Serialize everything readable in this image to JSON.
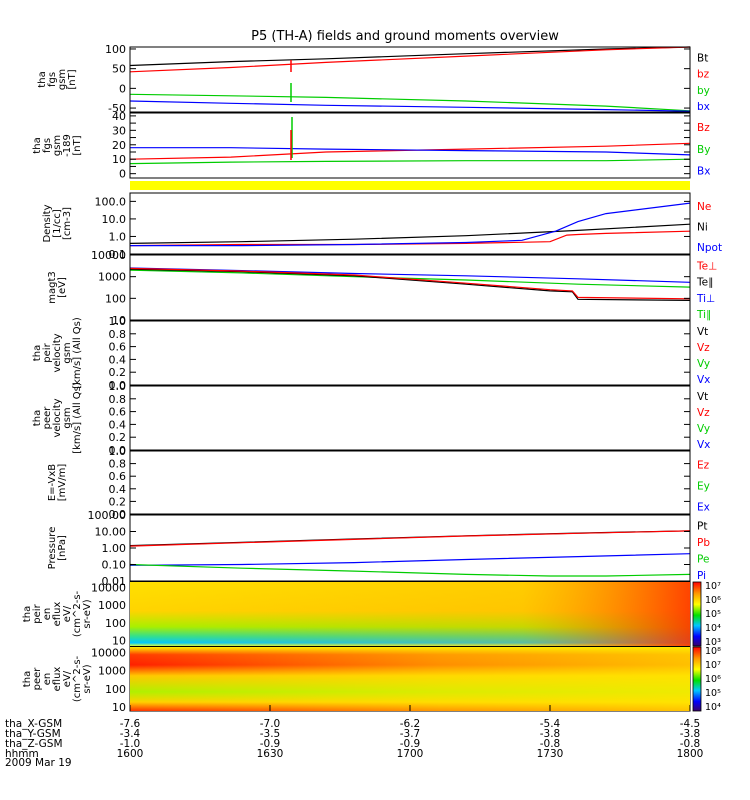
{
  "title": "P5 (TH-A) fields and ground moments overview",
  "chart_data": [
    {
      "type": "line",
      "ylabel": [
        "tha",
        "fgs",
        "gsm",
        "[nT]"
      ],
      "ylim": [
        -60,
        105
      ],
      "yticks": [
        -50,
        0,
        50,
        100
      ],
      "ticklabels": [
        "-50",
        "0",
        "50",
        "100"
      ],
      "legend": [
        {
          "name": "Bt",
          "color": "#000000"
        },
        {
          "name": "bz",
          "color": "#ff0000"
        },
        {
          "name": "by",
          "color": "#00cc00"
        },
        {
          "name": "bx",
          "color": "#0000ff"
        }
      ],
      "series": [
        {
          "name": "Bt",
          "color": "#000000",
          "x": [
            0,
            18,
            35,
            60,
            85,
            100
          ],
          "y": [
            58,
            68,
            75,
            88,
            100,
            108
          ]
        },
        {
          "name": "bz",
          "color": "#ff0000",
          "x": [
            0,
            18,
            35,
            60,
            85,
            100
          ],
          "y": [
            42,
            53,
            66,
            82,
            98,
            108
          ]
        },
        {
          "name": "by",
          "color": "#00cc00",
          "x": [
            0,
            18,
            35,
            60,
            85,
            100
          ],
          "y": [
            -15,
            -19,
            -23,
            -32,
            -45,
            -57
          ]
        },
        {
          "name": "bx",
          "color": "#0000ff",
          "x": [
            0,
            18,
            35,
            60,
            85,
            100
          ],
          "y": [
            -32,
            -38,
            -43,
            -48,
            -54,
            -58
          ]
        }
      ]
    },
    {
      "type": "line",
      "ylabel": [
        "tha",
        "fgs",
        "gsm",
        "-189",
        "[nT]"
      ],
      "ylim": [
        -3,
        42
      ],
      "yticks": [
        0,
        5,
        10,
        15,
        20,
        25,
        30,
        35,
        40
      ],
      "ticklabels": [
        "0",
        "",
        "10",
        "",
        "20",
        "",
        "30",
        "",
        "40"
      ],
      "legend": [
        {
          "name": "Bz",
          "color": "#ff0000"
        },
        {
          "name": "By",
          "color": "#00cc00"
        },
        {
          "name": "Bx",
          "color": "#0000ff"
        }
      ],
      "series": [
        {
          "name": "Bz",
          "color": "#ff0000",
          "x": [
            0,
            18,
            35,
            60,
            85,
            100
          ],
          "y": [
            10,
            11.5,
            15,
            17,
            19,
            21
          ]
        },
        {
          "name": "By",
          "color": "#00cc00",
          "x": [
            0,
            18,
            35,
            60,
            85,
            100
          ],
          "y": [
            7,
            8,
            8.5,
            9,
            9,
            10
          ]
        },
        {
          "name": "Bx",
          "color": "#0000ff",
          "x": [
            0,
            18,
            35,
            60,
            85,
            100
          ],
          "y": [
            18,
            18,
            17,
            16,
            15,
            13
          ]
        }
      ]
    },
    {
      "type": "line",
      "log": true,
      "ylabel": [
        "Density",
        "[1/cc]",
        "[cm-3]"
      ],
      "ylim": [
        0.1,
        300
      ],
      "yticks": [
        0.1,
        1,
        10,
        100
      ],
      "ticklabels": [
        "0.1",
        "1.0",
        "10.0",
        "100.0"
      ],
      "legend": [
        {
          "name": "Ne",
          "color": "#ff0000"
        },
        {
          "name": "Ni",
          "color": "#000000"
        },
        {
          "name": "Npot",
          "color": "#0000ff"
        }
      ],
      "series": [
        {
          "name": "Ni",
          "color": "#000000",
          "x": [
            0,
            20,
            40,
            60,
            80,
            100
          ],
          "y": [
            0.4,
            0.5,
            0.7,
            1.1,
            2.2,
            5
          ]
        },
        {
          "name": "Ne",
          "color": "#ff0000",
          "x": [
            0,
            20,
            40,
            60,
            75,
            78,
            80,
            85,
            100
          ],
          "y": [
            0.3,
            0.35,
            0.35,
            0.4,
            0.5,
            1.2,
            1.3,
            1.5,
            2
          ]
        },
        {
          "name": "Npot",
          "color": "#0000ff",
          "x": [
            0,
            20,
            40,
            60,
            70,
            76,
            80,
            85,
            100
          ],
          "y": [
            0.3,
            0.3,
            0.35,
            0.45,
            0.6,
            2,
            7,
            20,
            80
          ]
        }
      ]
    },
    {
      "type": "line",
      "log": true,
      "ylabel": [
        "magt3",
        "[eV]"
      ],
      "ylim": [
        10,
        10000
      ],
      "yticks": [
        10,
        100,
        1000,
        10000
      ],
      "ticklabels": [
        "10",
        "100",
        "1000",
        "10000"
      ],
      "legend": [
        {
          "name": "Te⊥",
          "color": "#ff0000"
        },
        {
          "name": "Te∥",
          "color": "#000000"
        },
        {
          "name": "Ti⊥",
          "color": "#0000ff"
        },
        {
          "name": "Ti∥",
          "color": "#00cc00"
        }
      ],
      "series": [
        {
          "name": "Ti⊥",
          "color": "#0000ff",
          "x": [
            0,
            20,
            40,
            60,
            80,
            100
          ],
          "y": [
            2500,
            1900,
            1400,
            1100,
            800,
            550
          ]
        },
        {
          "name": "Ti∥",
          "color": "#00cc00",
          "x": [
            0,
            20,
            40,
            60,
            80,
            100
          ],
          "y": [
            2000,
            1500,
            1000,
            700,
            450,
            330
          ]
        },
        {
          "name": "Te∥",
          "color": "#000000",
          "x": [
            0,
            20,
            40,
            60,
            75,
            79,
            80,
            100
          ],
          "y": [
            2200,
            1700,
            1100,
            450,
            220,
            200,
            90,
            80
          ]
        },
        {
          "name": "Te⊥",
          "color": "#ff0000",
          "x": [
            0,
            20,
            40,
            60,
            75,
            79,
            80,
            100
          ],
          "y": [
            2400,
            1800,
            1200,
            500,
            250,
            220,
            110,
            95
          ]
        }
      ]
    },
    {
      "type": "line",
      "ylabel": [
        "tha",
        "peir",
        "velocity",
        "gsm",
        "[km/s] (All Qs)"
      ],
      "ylim": [
        0,
        1
      ],
      "yticks": [
        0,
        0.2,
        0.4,
        0.6,
        0.8,
        1
      ],
      "ticklabels": [
        "0.0",
        "0.2",
        "0.4",
        "0.6",
        "0.8",
        "1.0"
      ],
      "legend": [
        {
          "name": "Vt",
          "color": "#000000"
        },
        {
          "name": "Vz",
          "color": "#ff0000"
        },
        {
          "name": "Vy",
          "color": "#00cc00"
        },
        {
          "name": "Vx",
          "color": "#0000ff"
        }
      ],
      "series": []
    },
    {
      "type": "line",
      "ylabel": [
        "tha",
        "peer",
        "velocity",
        "gsm",
        "[km/s] (All Qs)"
      ],
      "ylim": [
        0,
        1
      ],
      "yticks": [
        0,
        0.2,
        0.4,
        0.6,
        0.8,
        1
      ],
      "ticklabels": [
        "0.0",
        "0.2",
        "0.4",
        "0.6",
        "0.8",
        "1.0"
      ],
      "legend": [
        {
          "name": "Vt",
          "color": "#000000"
        },
        {
          "name": "Vz",
          "color": "#ff0000"
        },
        {
          "name": "Vy",
          "color": "#00cc00"
        },
        {
          "name": "Vx",
          "color": "#0000ff"
        }
      ],
      "series": []
    },
    {
      "type": "line",
      "ylabel": [
        "E=-VxB",
        "[mV/m]"
      ],
      "ylim": [
        0,
        1
      ],
      "yticks": [
        0,
        0.2,
        0.4,
        0.6,
        0.8,
        1
      ],
      "ticklabels": [
        "0.0",
        "0.2",
        "0.4",
        "0.6",
        "0.8",
        "1.0"
      ],
      "legend": [
        {
          "name": "Ez",
          "color": "#ff0000"
        },
        {
          "name": "Ey",
          "color": "#00cc00"
        },
        {
          "name": "Ex",
          "color": "#0000ff"
        }
      ],
      "series": []
    },
    {
      "type": "line",
      "log": true,
      "ylabel": [
        "Pressure",
        "[nPa]"
      ],
      "ylim": [
        0.01,
        100
      ],
      "yticks": [
        0.01,
        0.1,
        1,
        10,
        100
      ],
      "ticklabels": [
        "0.01",
        "0.10",
        "1.00",
        "10.00",
        "100.00"
      ],
      "legend": [
        {
          "name": "Pt",
          "color": "#000000"
        },
        {
          "name": "Pb",
          "color": "#ff0000"
        },
        {
          "name": "Pe",
          "color": "#00cc00"
        },
        {
          "name": "Pi",
          "color": "#0000ff"
        }
      ],
      "series": [
        {
          "name": "Pt",
          "color": "#000000",
          "x": [
            0,
            20,
            40,
            60,
            80,
            100
          ],
          "y": [
            1.4,
            2.2,
            3.5,
            5.5,
            8,
            11
          ]
        },
        {
          "name": "Pb",
          "color": "#ff0000",
          "x": [
            0,
            20,
            40,
            60,
            80,
            100
          ],
          "y": [
            1.3,
            2.1,
            3.3,
            5.3,
            7.8,
            10.8
          ]
        },
        {
          "name": "Pi",
          "color": "#0000ff",
          "x": [
            0,
            20,
            40,
            60,
            80,
            100
          ],
          "y": [
            0.09,
            0.1,
            0.13,
            0.2,
            0.3,
            0.45
          ]
        },
        {
          "name": "Pe",
          "color": "#00cc00",
          "x": [
            0,
            20,
            40,
            60,
            75,
            85,
            100
          ],
          "y": [
            0.1,
            0.06,
            0.04,
            0.025,
            0.02,
            0.02,
            0.025
          ]
        }
      ]
    },
    {
      "type": "heatmap",
      "log": true,
      "ylabel": [
        "tha",
        "peir",
        "en",
        "eflux",
        "eV/",
        "(cm^2-s-",
        "sr-eV)"
      ],
      "ylim": [
        5,
        20000
      ],
      "yticks": [
        10,
        100,
        1000,
        10000
      ],
      "ticklabels": [
        "10",
        "100",
        "1000",
        "10000"
      ],
      "colorbar": {
        "ticklabels": [
          "10³",
          "10⁴",
          "10⁵",
          "10⁶",
          "10⁷"
        ]
      }
    },
    {
      "type": "heatmap",
      "log": true,
      "ylabel": [
        "tha",
        "peer",
        "en",
        "eflux",
        "eV/",
        "(cm^2-s-",
        "sr-eV)"
      ],
      "ylim": [
        6,
        20000
      ],
      "yticks": [
        10,
        100,
        1000,
        10000
      ],
      "ticklabels": [
        "10",
        "100",
        "1000",
        "10000"
      ],
      "colorbar": {
        "ticklabels": [
          "10⁴",
          "10⁵",
          "10⁶",
          "10⁷",
          "10⁸"
        ]
      }
    }
  ],
  "x_axis": {
    "rows": [
      {
        "label": "tha_X-GSM",
        "values": [
          "-7.6",
          "-7.0",
          "-6.2",
          "-5.4",
          "-4.5"
        ]
      },
      {
        "label": "tha_Y-GSM",
        "values": [
          "-3.4",
          "-3.5",
          "-3.7",
          "-3.8",
          "-3.8"
        ]
      },
      {
        "label": "tha_Z-GSM",
        "values": [
          "-1.0",
          "-0.9",
          "-0.9",
          "-0.8",
          "-0.8"
        ]
      },
      {
        "label": "hhmm",
        "values": [
          "1600",
          "1630",
          "1700",
          "1730",
          "1800"
        ]
      }
    ],
    "date": "2009 Mar 19"
  }
}
